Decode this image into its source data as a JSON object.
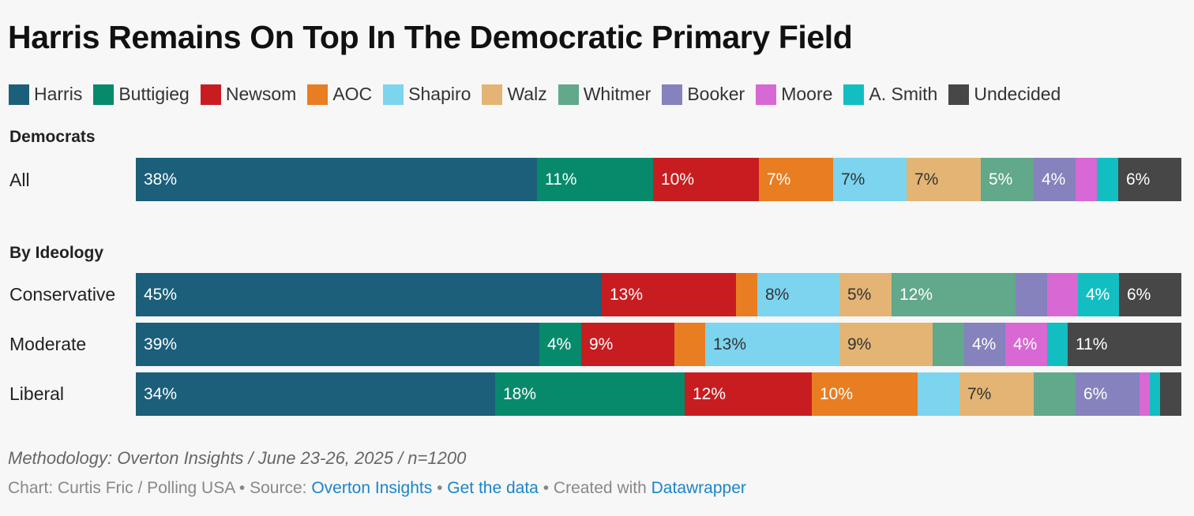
{
  "chart_data": {
    "type": "bar",
    "orientation": "horizontal",
    "stacked": true,
    "title": "Harris Remains On Top In The Democratic Primary Field",
    "legend_position": "top",
    "series_names": [
      "Harris",
      "Buttigieg",
      "Newsom",
      "AOC",
      "Shapiro",
      "Walz",
      "Whitmer",
      "Booker",
      "Moore",
      "A. Smith",
      "Undecided"
    ],
    "colors": [
      "#1b5f7a",
      "#078a6c",
      "#c81d20",
      "#e87d22",
      "#7cd4ef",
      "#e3b474",
      "#62a88a",
      "#8582bd",
      "#d868d4",
      "#13bec3",
      "#474747"
    ],
    "dark_label_series": [
      "Shapiro",
      "Walz"
    ],
    "groups": [
      {
        "label": "Democrats",
        "rows": [
          {
            "label": "All",
            "values": [
              38,
              11,
              10,
              7,
              7,
              7,
              5,
              4,
              2,
              2,
              6
            ],
            "labels": [
              "38%",
              "11%",
              "10%",
              "7%",
              "7%",
              "7%",
              "5%",
              "4%",
              "",
              "",
              "6%"
            ]
          }
        ]
      },
      {
        "label": "By Ideology",
        "rows": [
          {
            "label": "Conservative",
            "values": [
              45,
              0,
              13,
              2,
              8,
              5,
              12,
              3,
              3,
              4,
              6
            ],
            "labels": [
              "45%",
              "",
              "13%",
              "",
              "8%",
              "5%",
              "12%",
              "",
              "",
              "4%",
              "6%"
            ]
          },
          {
            "label": "Moderate",
            "values": [
              39,
              4,
              9,
              3,
              13,
              9,
              3,
              4,
              4,
              2,
              11
            ],
            "labels": [
              "39%",
              "4%",
              "9%",
              "",
              "13%",
              "9%",
              "",
              "4%",
              "4%",
              "",
              "11%"
            ]
          },
          {
            "label": "Liberal",
            "values": [
              34,
              18,
              12,
              10,
              4,
              7,
              4,
              6,
              1,
              1,
              2
            ],
            "labels": [
              "34%",
              "18%",
              "12%",
              "10%",
              "",
              "7%",
              "",
              "6%",
              "",
              "",
              ""
            ]
          }
        ]
      }
    ]
  },
  "methodology": "Methodology: Overton Insights / June 23-26, 2025 / n=1200",
  "footer": {
    "chart_credit": "Chart: Curtis Fric / Polling USA",
    "sep": " • ",
    "source_prefix": "Source: ",
    "source_link": "Overton Insights",
    "data_link": "Get the data",
    "created_prefix": "Created with ",
    "created_link": "Datawrapper"
  }
}
